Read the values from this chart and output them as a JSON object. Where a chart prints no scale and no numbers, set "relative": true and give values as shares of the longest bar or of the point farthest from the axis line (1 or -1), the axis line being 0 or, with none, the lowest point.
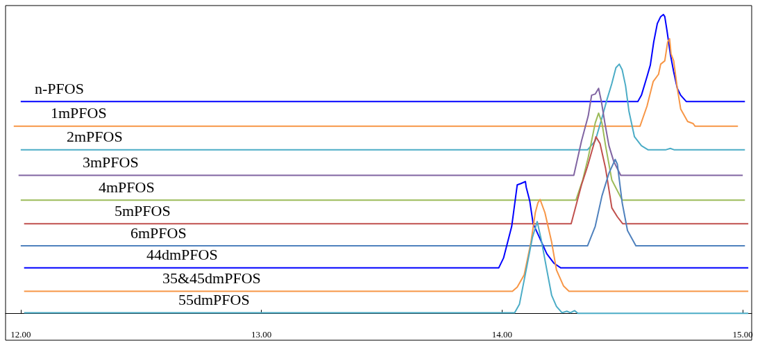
{
  "chart_data": {
    "type": "line",
    "relative": true,
    "legend": false,
    "grid": false,
    "marker": "none",
    "line_style": "solid",
    "xlim": [
      11.937,
      15.037
    ],
    "xticks": [
      {
        "value": 12,
        "label": "12.00"
      },
      {
        "value": 13,
        "label": "13.00"
      },
      {
        "value": 14,
        "label": "14.00"
      },
      {
        "value": 15,
        "label": "15.00"
      }
    ],
    "series": [
      {
        "name": "n-PFOS",
        "color": "#0000ff",
        "x": [
          12.0,
          14.564,
          14.579,
          14.602,
          14.616,
          14.63,
          14.645,
          14.659,
          14.67,
          14.676,
          14.685,
          14.699,
          14.713,
          14.728,
          14.742,
          14.765,
          15.009
        ],
        "values": [
          0.709,
          0.709,
          0.73,
          0.792,
          0.831,
          0.908,
          0.97,
          0.993,
          1.0,
          0.993,
          0.947,
          0.868,
          0.808,
          0.753,
          0.73,
          0.709,
          0.709
        ]
      },
      {
        "name": "1mPFOS",
        "color": "#f79646",
        "x": [
          11.971,
          14.573,
          14.602,
          14.628,
          14.65,
          14.659,
          14.676,
          14.688,
          14.696,
          14.702,
          14.713,
          14.728,
          14.742,
          14.771,
          14.794,
          14.802,
          14.98
        ],
        "values": [
          0.626,
          0.626,
          0.693,
          0.776,
          0.8,
          0.834,
          0.845,
          0.908,
          0.919,
          0.868,
          0.845,
          0.753,
          0.684,
          0.642,
          0.635,
          0.626,
          0.626
        ]
      },
      {
        "name": "2mPFOS",
        "color": "#4bacc6",
        "x": [
          12.0,
          14.355,
          14.387,
          14.415,
          14.436,
          14.456,
          14.473,
          14.487,
          14.499,
          14.513,
          14.527,
          14.55,
          14.579,
          14.607,
          14.679,
          14.699,
          14.716,
          15.009
        ],
        "values": [
          0.547,
          0.547,
          0.577,
          0.654,
          0.716,
          0.769,
          0.822,
          0.834,
          0.815,
          0.762,
          0.677,
          0.591,
          0.561,
          0.547,
          0.547,
          0.552,
          0.547,
          0.547
        ]
      },
      {
        "name": "3mPFOS",
        "color": "#8064a2",
        "x": [
          11.991,
          14.298,
          14.33,
          14.358,
          14.372,
          14.387,
          14.401,
          14.413,
          14.427,
          14.444,
          14.464,
          14.493,
          15.0
        ],
        "values": [
          0.462,
          0.462,
          0.577,
          0.661,
          0.73,
          0.734,
          0.753,
          0.707,
          0.637,
          0.561,
          0.508,
          0.462,
          0.462
        ]
      },
      {
        "name": "4mPFOS",
        "color": "#9bbb59",
        "x": [
          12.0,
          14.307,
          14.335,
          14.358,
          14.387,
          14.401,
          14.415,
          14.43,
          14.456,
          14.499,
          15.009
        ],
        "values": [
          0.379,
          0.379,
          0.446,
          0.522,
          0.637,
          0.67,
          0.637,
          0.561,
          0.446,
          0.379,
          0.379
        ]
      },
      {
        "name": "5mPFOS",
        "color": "#c0504d",
        "x": [
          12.014,
          14.287,
          14.33,
          14.355,
          14.39,
          14.407,
          14.43,
          14.456,
          14.479,
          14.501,
          15.023
        ],
        "values": [
          0.3,
          0.3,
          0.43,
          0.492,
          0.591,
          0.568,
          0.485,
          0.353,
          0.323,
          0.3,
          0.3
        ]
      },
      {
        "name": "6mPFOS",
        "color": "#4f81bd",
        "x": [
          12.0,
          14.355,
          14.387,
          14.415,
          14.444,
          14.47,
          14.479,
          14.499,
          14.521,
          14.556,
          15.009
        ],
        "values": [
          0.226,
          0.226,
          0.291,
          0.393,
          0.469,
          0.515,
          0.499,
          0.37,
          0.277,
          0.226,
          0.226
        ]
      },
      {
        "name": "44dmPFOS",
        "color": "#0000ff",
        "x": [
          12.014,
          13.986,
          14.006,
          14.04,
          14.063,
          14.077,
          14.097,
          14.1,
          14.115,
          14.129,
          14.155,
          14.186,
          14.215,
          14.244,
          15.023
        ],
        "values": [
          0.152,
          0.152,
          0.185,
          0.291,
          0.43,
          0.434,
          0.441,
          0.423,
          0.376,
          0.3,
          0.254,
          0.199,
          0.168,
          0.152,
          0.152
        ]
      },
      {
        "name": "35&45dmPFOS",
        "color": "#f79646",
        "x": [
          12.014,
          14.043,
          14.063,
          14.092,
          14.12,
          14.138,
          14.149,
          14.158,
          14.178,
          14.206,
          14.226,
          14.255,
          14.278,
          15.023
        ],
        "values": [
          0.074,
          0.074,
          0.088,
          0.129,
          0.238,
          0.337,
          0.37,
          0.381,
          0.337,
          0.238,
          0.145,
          0.092,
          0.074,
          0.074
        ]
      },
      {
        "name": "55dmPFOS",
        "color": "#4bacc6",
        "x": [
          12.014,
          14.052,
          14.072,
          14.1,
          14.126,
          14.146,
          14.163,
          14.186,
          14.206,
          14.226,
          14.249,
          14.269,
          14.284,
          14.301,
          14.315,
          15.023
        ],
        "values": [
          0.002,
          0.002,
          0.03,
          0.145,
          0.254,
          0.307,
          0.245,
          0.145,
          0.06,
          0.023,
          0.002,
          0.007,
          0.002,
          0.009,
          0,
          0
        ]
      }
    ]
  }
}
